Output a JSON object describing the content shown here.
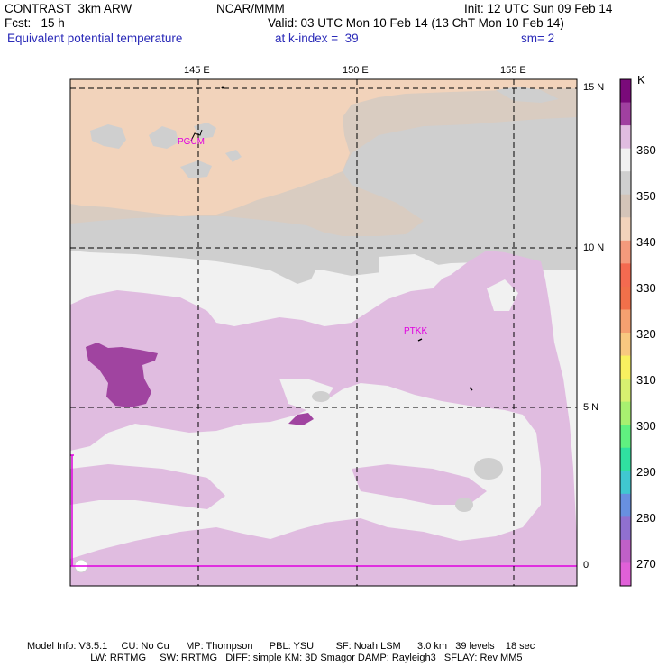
{
  "header": {
    "model": "CONTRAST  3km ARW",
    "org": "NCAR/MMM",
    "init": "Init: 12 UTC Sun 09 Feb 14",
    "fcst": "Fcst:   15 h",
    "valid": "Valid: 03 UTC Mon 10 Feb 14 (13 ChT Mon 10 Feb 14)",
    "field": "Equivalent potential temperature",
    "level": "at k-index =  39",
    "smooth": "sm= 2"
  },
  "map": {
    "lon_labels": [
      "145 E",
      "150 E",
      "155 E"
    ],
    "lat_labels": [
      "15 N",
      "10 N",
      "5 N",
      "0"
    ],
    "stations": [
      "PGUM",
      "PTKK"
    ],
    "colors": {
      "tan": "#f2d3bb",
      "tan_gray": "#d9ccc1",
      "gray": "#cfcfcf",
      "white": "#f1f1f1",
      "lavender": "#e0bce0",
      "purple": "#a044a0",
      "station": "#e000e0"
    }
  },
  "colorbar": {
    "unit": "K",
    "labels": [
      "360",
      "350",
      "340",
      "330",
      "320",
      "310",
      "300",
      "290",
      "280",
      "270"
    ],
    "colors": [
      "#7a0a7a",
      "#a040a0",
      "#e0bce0",
      "#f1f1f1",
      "#cfcfcf",
      "#d4c4b8",
      "#f2d3bb",
      "#f49a7c",
      "#f46a50",
      "#f1704a",
      "#f5a070",
      "#f8c880",
      "#f8f060",
      "#d8f070",
      "#a8f070",
      "#60f080",
      "#30e0a0",
      "#40c8d0",
      "#6890e0",
      "#9070d0",
      "#c060c8",
      "#e060d8"
    ]
  },
  "footer": {
    "line1": "Model Info: V3.5.1     CU: No Cu      MP: Thompson      PBL: YSU        SF: Noah LSM      3.0 km   39 levels    18 sec",
    "line2": "                       LW: RRTMG     SW: RRTMG   DIFF: simple KM: 3D Smagor DAMP: Rayleigh3   SFLAY: Rev MM5"
  }
}
